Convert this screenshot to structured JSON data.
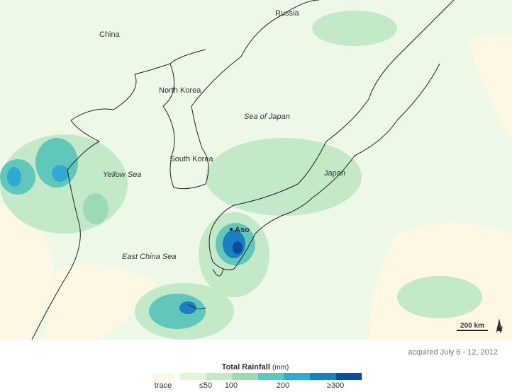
{
  "map": {
    "countries": [
      "Russia",
      "China",
      "North Korea",
      "South Korea",
      "Japan"
    ],
    "seas": [
      "Sea of Japan",
      "Yellow Sea",
      "East China Sea"
    ],
    "marker": "Aso"
  },
  "scale_bar": "200 km",
  "north": "N",
  "caption": "acquired July 6 - 12, 2012",
  "legend": {
    "title": "Total Rainfall",
    "unit": "(mm)",
    "labels": [
      "trace",
      "≤50",
      "100",
      "200",
      "≥300"
    ],
    "trace_color": "#fdf7e4",
    "colors": [
      "#e3f5de",
      "#c3e9c8",
      "#9bdab5",
      "#62c7bb",
      "#2eaad3",
      "#1a80c2",
      "#0b4f9c"
    ]
  }
}
